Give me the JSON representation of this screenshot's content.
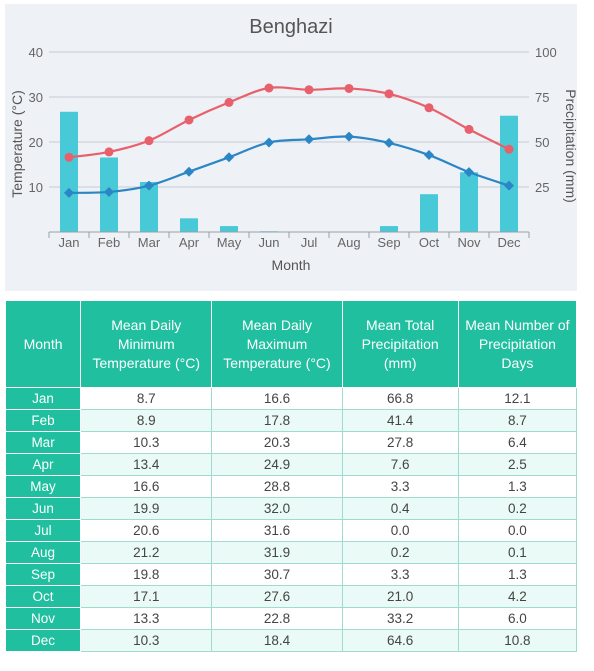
{
  "chart_data": {
    "type": "combo",
    "title": "Benghazi",
    "xlabel": "Month",
    "ylabel_left": "Temperature (°C)",
    "ylabel_right": "Precipitation (mm)",
    "categories": [
      "Jan",
      "Feb",
      "Mar",
      "Apr",
      "May",
      "Jun",
      "Jul",
      "Aug",
      "Sep",
      "Oct",
      "Nov",
      "Dec"
    ],
    "left_axis": {
      "min": 0,
      "max": 40,
      "ticks": [
        10,
        20,
        30,
        40
      ]
    },
    "right_axis": {
      "min": 0,
      "max": 100,
      "ticks": [
        25,
        50,
        75,
        100
      ]
    },
    "grid": true,
    "series": [
      {
        "kind": "line",
        "axis": "left",
        "color": "#e8606b",
        "marker": "circle",
        "values": [
          16.6,
          17.8,
          20.3,
          24.9,
          28.8,
          32.0,
          31.6,
          31.9,
          30.7,
          27.6,
          22.8,
          18.4
        ]
      },
      {
        "kind": "line",
        "axis": "left",
        "color": "#2b86c5",
        "marker": "diamond",
        "values": [
          8.7,
          8.9,
          10.3,
          13.4,
          16.6,
          19.9,
          20.6,
          21.2,
          19.8,
          17.1,
          13.3,
          10.3
        ]
      },
      {
        "kind": "bar",
        "axis": "right",
        "color": "#48c9d8",
        "values": [
          66.8,
          41.4,
          27.8,
          7.6,
          3.3,
          0.4,
          0.0,
          0.2,
          3.3,
          21.0,
          33.2,
          64.6
        ]
      }
    ]
  },
  "table": {
    "headers": [
      "Month",
      "Mean Daily Minimum Temperature (°C)",
      "Mean Daily Maximum Temperature (°C)",
      "Mean Total Precipitation (mm)",
      "Mean Number of Precipitation Days"
    ],
    "rows": [
      [
        "Jan",
        "8.7",
        "16.6",
        "66.8",
        "12.1"
      ],
      [
        "Feb",
        "8.9",
        "17.8",
        "41.4",
        "8.7"
      ],
      [
        "Mar",
        "10.3",
        "20.3",
        "27.8",
        "6.4"
      ],
      [
        "Apr",
        "13.4",
        "24.9",
        "7.6",
        "2.5"
      ],
      [
        "May",
        "16.6",
        "28.8",
        "3.3",
        "1.3"
      ],
      [
        "Jun",
        "19.9",
        "32.0",
        "0.4",
        "0.2"
      ],
      [
        "Jul",
        "20.6",
        "31.6",
        "0.0",
        "0.0"
      ],
      [
        "Aug",
        "21.2",
        "31.9",
        "0.2",
        "0.1"
      ],
      [
        "Sep",
        "19.8",
        "30.7",
        "3.3",
        "1.3"
      ],
      [
        "Oct",
        "17.1",
        "27.6",
        "21.0",
        "4.2"
      ],
      [
        "Nov",
        "13.3",
        "22.8",
        "33.2",
        "6.0"
      ],
      [
        "Dec",
        "10.3",
        "18.4",
        "64.6",
        "10.8"
      ]
    ]
  }
}
